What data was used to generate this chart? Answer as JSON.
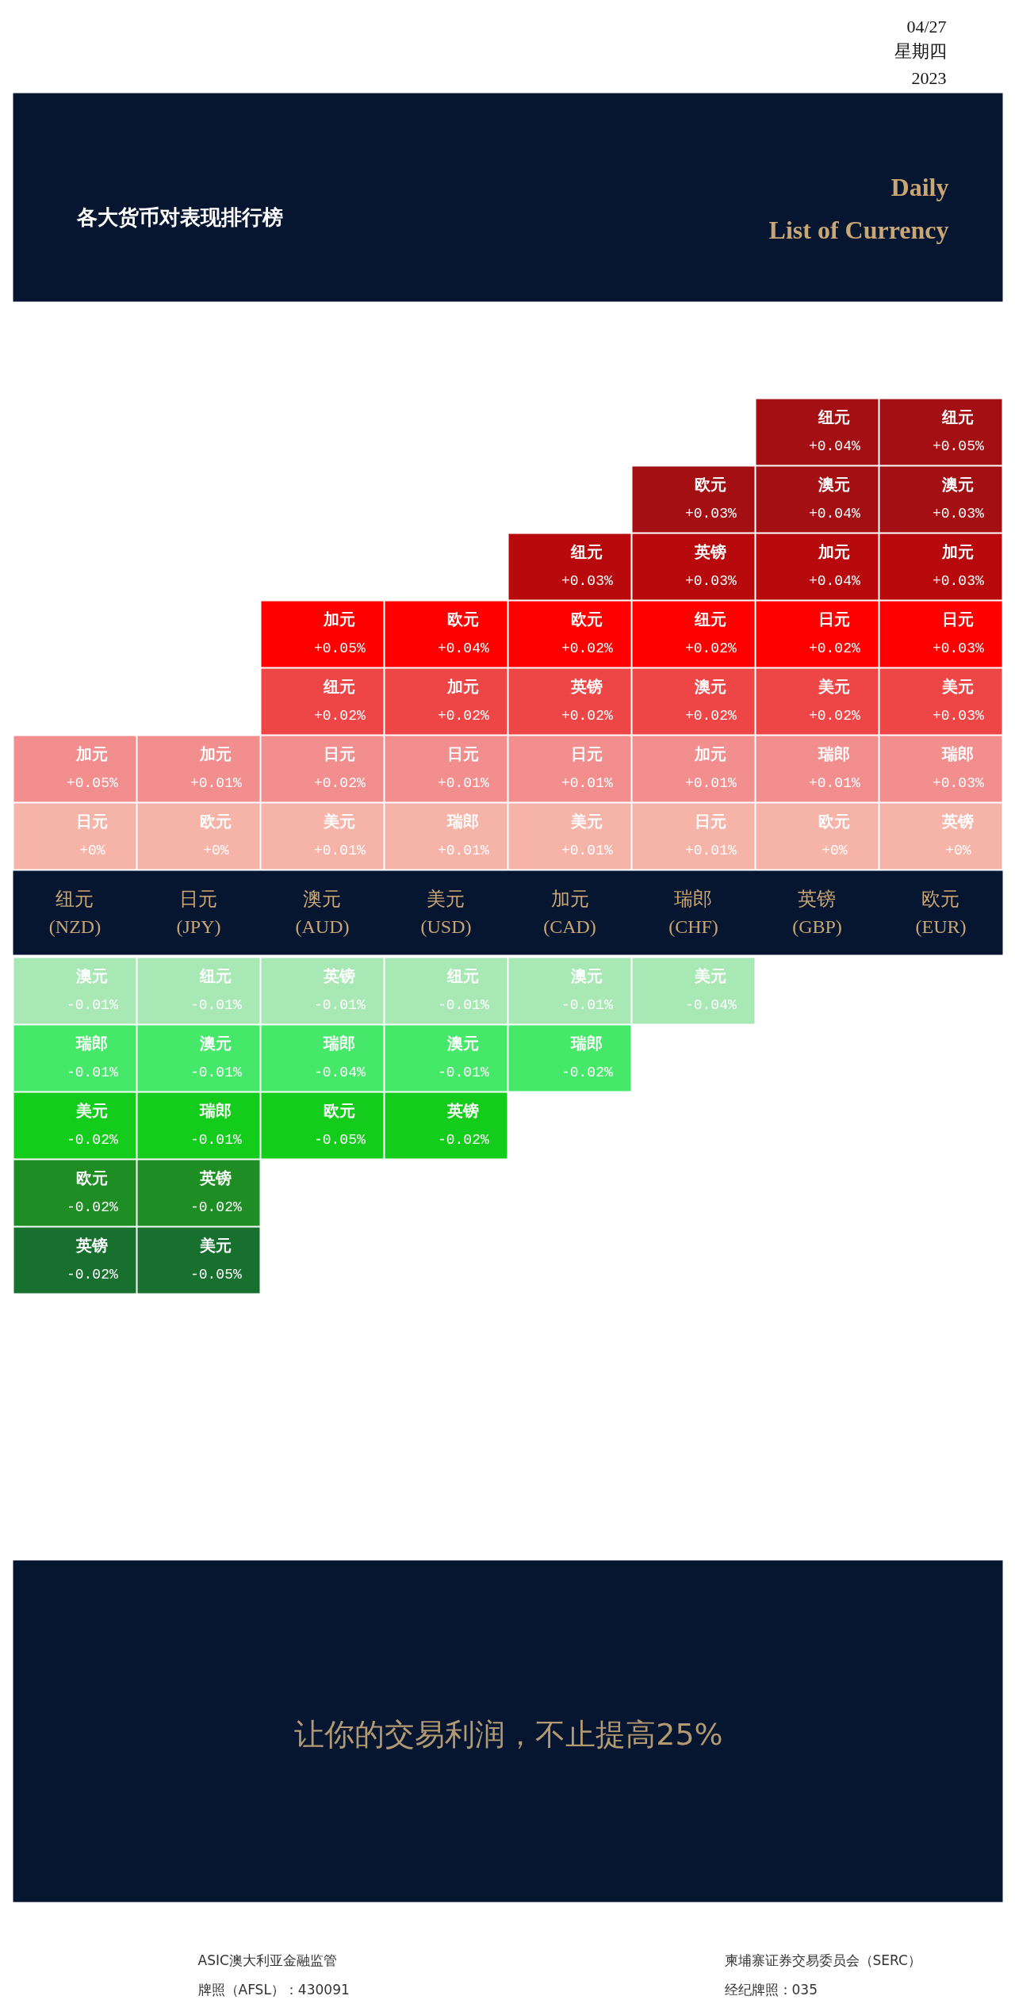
{
  "chart_data": {
    "type": "other",
    "title": "各大货币对表现排行榜",
    "subtitle": "Daily\nList of Currency",
    "categories": [
      "纽元\n(NZD)",
      "日元\n(JPY)",
      "澳元\n(AUD)",
      "美元\n(USD)",
      "加元\n(CAD)",
      "瑞郎\n(CHF)",
      "英镑\n(GBP)",
      "欧元\n(EUR)"
    ],
    "series": [
      {
        "color": "#a30f12",
        "values": [
          null,
          null,
          null,
          null,
          null,
          null,
          0.04,
          0.05
        ],
        "value_labels": [
          null,
          null,
          null,
          null,
          null,
          null,
          "+0.04%",
          "+0.05%"
        ]
      },
      {
        "color": "#a30f12",
        "values": [
          null,
          null,
          null,
          null,
          null,
          0.03,
          0.04,
          0.03
        ],
        "value_labels": [
          null,
          null,
          null,
          null,
          null,
          "+0.03%",
          "+0.04%",
          "+0.03%"
        ]
      },
      {
        "color": "#b80a0c",
        "values": [
          null,
          null,
          null,
          null,
          0.03,
          0.03,
          0.04,
          0.03
        ],
        "value_labels": [
          null,
          null,
          null,
          null,
          "+0.03%",
          "+0.03%",
          "+0.04%",
          "+0.03%"
        ]
      },
      {
        "color": "#fe0000",
        "values": [
          null,
          null,
          0.05,
          0.04,
          0.02,
          0.02,
          0.02,
          0.03
        ],
        "value_labels": [
          null,
          null,
          "+0.05%",
          "+0.04%",
          "+0.02%",
          "+0.02%",
          "+0.02%",
          "+0.03%"
        ]
      },
      {
        "color": "#ee4646",
        "values": [
          null,
          null,
          0.02,
          0.02,
          0.02,
          0.02,
          0.02,
          0.03
        ],
        "value_labels": [
          null,
          null,
          "+0.02%",
          "+0.02%",
          "+0.02%",
          "+0.02%",
          "+0.02%",
          "+0.03%"
        ]
      },
      {
        "color": "#f28e8e",
        "values": [
          0.05,
          0.01,
          0.02,
          0.01,
          0.01,
          0.01,
          0.01,
          0.03
        ],
        "value_labels": [
          "+0.05%",
          "+0.01%",
          "+0.02%",
          "+0.01%",
          "+0.01%",
          "+0.01%",
          "+0.01%",
          "+0.03%"
        ]
      },
      {
        "color": "#f6b3a8",
        "values": [
          0,
          0,
          0.01,
          0.01,
          0.01,
          0.01,
          0,
          0
        ],
        "value_labels": [
          "+0%",
          "+0%",
          "+0.01%",
          "+0.01%",
          "+0.01%",
          "+0.01%",
          "+0%",
          "+0%"
        ]
      },
      {
        "color": "#a8e8b4",
        "values": [
          -0.01,
          -0.01,
          -0.01,
          -0.01,
          -0.01,
          -0.04,
          null,
          null
        ],
        "value_labels": [
          "-0.01%",
          "-0.01%",
          "-0.01%",
          "-0.01%",
          "-0.01%",
          "-0.04%",
          null,
          null
        ]
      },
      {
        "color": "#46e86a",
        "values": [
          -0.01,
          -0.01,
          -0.04,
          -0.01,
          -0.02,
          null,
          null,
          null
        ],
        "value_labels": [
          "-0.01%",
          "-0.01%",
          "-0.04%",
          "-0.01%",
          "-0.02%",
          null,
          null,
          null
        ]
      },
      {
        "color": "#14cc1c",
        "values": [
          -0.02,
          -0.01,
          -0.05,
          -0.02,
          null,
          null,
          null,
          null
        ],
        "value_labels": [
          "-0.02%",
          "-0.01%",
          "-0.05%",
          "-0.02%",
          null,
          null,
          null,
          null
        ]
      },
      {
        "color": "#1e8e24",
        "values": [
          -0.02,
          -0.02,
          null,
          null,
          null,
          null,
          null,
          null
        ],
        "value_labels": [
          "-0.02%",
          "-0.02%",
          null,
          null,
          null,
          null,
          null,
          null
        ]
      },
      {
        "color": "#17702e",
        "values": [
          -0.02,
          -0.05,
          null,
          null,
          null,
          null,
          null,
          null
        ],
        "value_labels": [
          "-0.02%",
          "-0.05%",
          null,
          null,
          null,
          null,
          null,
          null
        ]
      }
    ],
    "annotations": [
      "04/27",
      "星期四",
      "2023",
      "纽元",
      "纽元",
      "欧元",
      "澳元",
      "澳元",
      "纽元",
      "英镑",
      "加元",
      "加元",
      "加元",
      "欧元",
      "欧元",
      "纽元",
      "日元",
      "日元",
      "纽元",
      "加元",
      "英镑",
      "澳元",
      "美元",
      "美元",
      "加元",
      "加元",
      "日元",
      "日元",
      "日元",
      "加元",
      "瑞郎",
      "瑞郎",
      "日元",
      "欧元",
      "美元",
      "瑞郎",
      "美元",
      "日元",
      "欧元",
      "英镑",
      "澳元",
      "纽元",
      "英镑",
      "纽元",
      "澳元",
      "美元",
      "瑞郎",
      "澳元",
      "瑞郎",
      "澳元",
      "瑞郎",
      "美元",
      "瑞郎",
      "欧元",
      "英镑",
      "欧元",
      "英镑",
      "英镑",
      "美元",
      "让你的交易利润，不止提高25%",
      "ASIC澳大利亚金融监管",
      "牌照（AFSL）：430091",
      "柬埔寨证券交易委员会（SERC）",
      "经纪牌照：035"
    ]
  }
}
